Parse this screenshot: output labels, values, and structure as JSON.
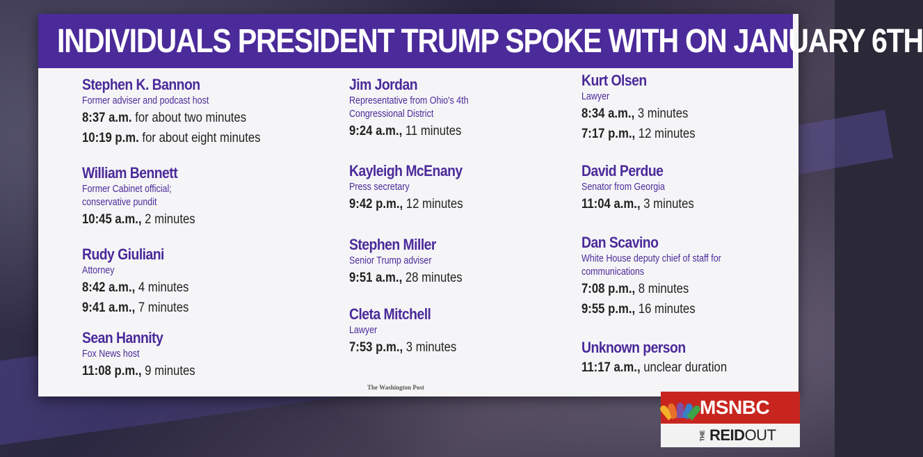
{
  "title": "INDIVIDUALS PRESIDENT TRUMP SPOKE WITH ON JANUARY 6TH",
  "source": "The Washington Post",
  "network": {
    "logo_text": "MSNBC",
    "show_the": "THE",
    "show_name_a": "REID",
    "show_name_b": "OUT"
  },
  "colors": {
    "accent": "#4b2a9a",
    "text": "#222222",
    "network_red": "#c8251e"
  },
  "columns": [
    [
      {
        "name": "Stephen K. Bannon",
        "role": [
          "Former adviser and podcast host"
        ],
        "calls": [
          {
            "time": "8:37 a.m.",
            "duration": " for about two minutes"
          },
          {
            "time": "10:19 p.m.",
            "duration": " for about eight minutes"
          }
        ]
      },
      {
        "name": "William Bennett",
        "role": [
          "Former Cabinet official;",
          "conservative pundit"
        ],
        "calls": [
          {
            "time": "10:45 a.m.,",
            "duration": " 2 minutes"
          }
        ]
      },
      {
        "name": "Rudy Giuliani",
        "role": [
          "Attorney"
        ],
        "calls": [
          {
            "time": "8:42 a.m.,",
            "duration": " 4 minutes"
          },
          {
            "time": "9:41 a.m.,",
            "duration": " 7 minutes"
          }
        ]
      },
      {
        "name": "Sean Hannity",
        "role": [
          "Fox News host"
        ],
        "calls": [
          {
            "time": "11:08 p.m.,",
            "duration": " 9 minutes"
          }
        ]
      }
    ],
    [
      {
        "name": "Jim Jordan",
        "role": [
          "Representative from Ohio's 4th",
          "Congressional District"
        ],
        "calls": [
          {
            "time": "9:24 a.m.,",
            "duration": " 11 minutes"
          }
        ]
      },
      {
        "name": "Kayleigh McEnany",
        "role": [
          "Press secretary"
        ],
        "calls": [
          {
            "time": "9:42 p.m.,",
            "duration": " 12 minutes"
          }
        ]
      },
      {
        "name": "Stephen Miller",
        "role": [
          "Senior Trump adviser"
        ],
        "calls": [
          {
            "time": "9:51 a.m.,",
            "duration": " 28 minutes"
          }
        ]
      },
      {
        "name": "Cleta Mitchell",
        "role": [
          "Lawyer"
        ],
        "calls": [
          {
            "time": "7:53 p.m.,",
            "duration": " 3 minutes"
          }
        ]
      }
    ],
    [
      {
        "name": "Kurt Olsen",
        "role": [
          "Lawyer"
        ],
        "calls": [
          {
            "time": "8:34 a.m.,",
            "duration": " 3 minutes"
          },
          {
            "time": "7:17 p.m.,",
            "duration": " 12 minutes"
          }
        ]
      },
      {
        "name": "David Perdue",
        "role": [
          "Senator from Georgia"
        ],
        "calls": [
          {
            "time": "11:04 a.m.,",
            "duration": " 3 minutes"
          }
        ]
      },
      {
        "name": "Dan Scavino",
        "role": [
          "White House deputy chief of staff for",
          "communications"
        ],
        "calls": [
          {
            "time": "7:08 p.m.,",
            "duration": " 8 minutes"
          },
          {
            "time": "9:55 p.m.,",
            "duration": " 16 minutes"
          }
        ]
      },
      {
        "name": "Unknown person",
        "role": [],
        "calls": [
          {
            "time": "11:17 a.m.,",
            "duration": " unclear duration"
          }
        ]
      }
    ]
  ]
}
